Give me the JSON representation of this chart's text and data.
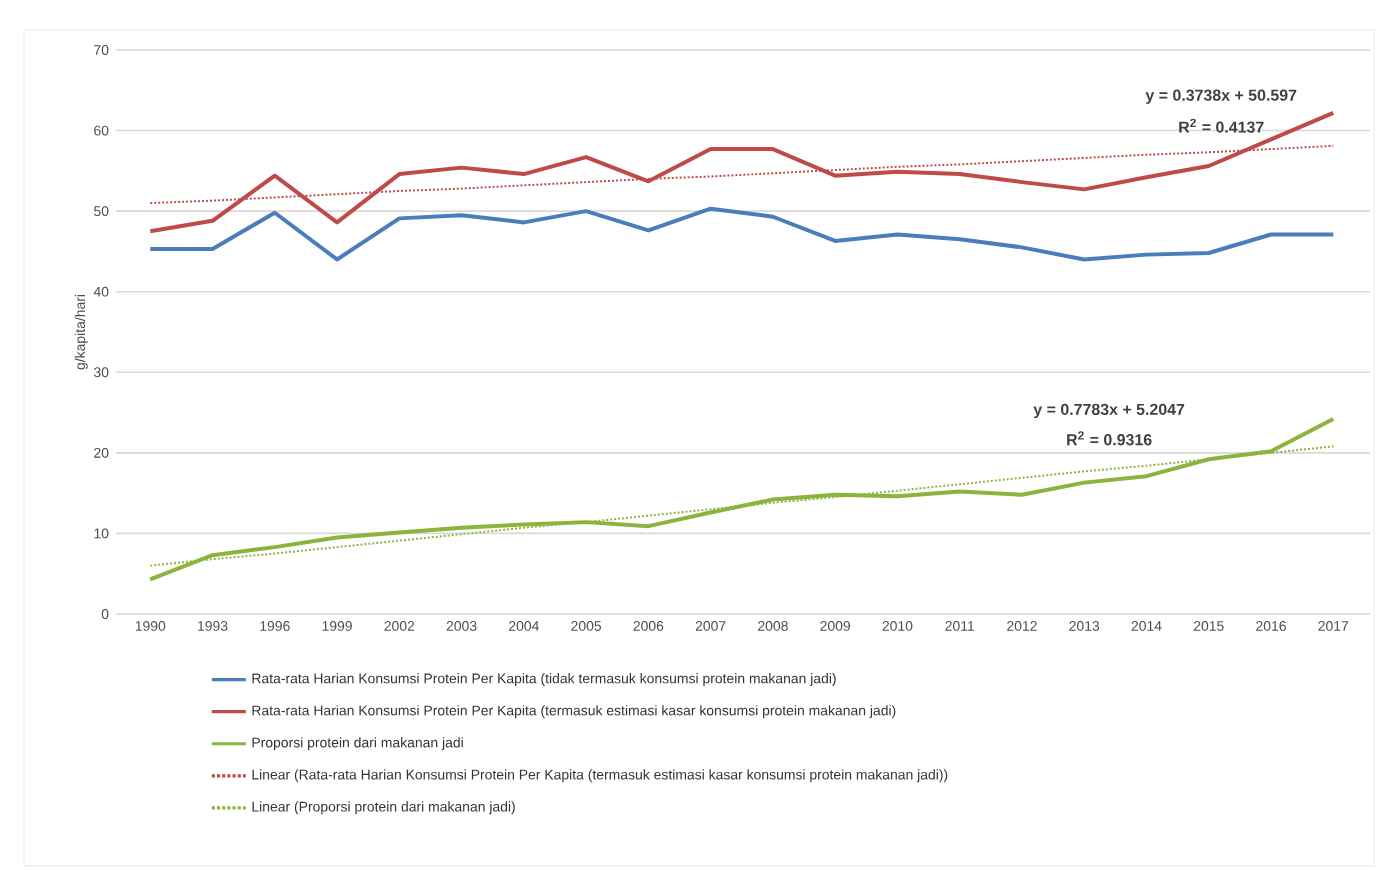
{
  "chart_data": {
    "type": "line",
    "ylabel": "g/kapita/hari",
    "categories": [
      "1990",
      "1993",
      "1996",
      "1999",
      "2002",
      "2003",
      "2004",
      "2005",
      "2006",
      "2007",
      "2008",
      "2009",
      "2010",
      "2011",
      "2012",
      "2013",
      "2014",
      "2015",
      "2016",
      "2017"
    ],
    "series": [
      {
        "name": "Rata-rata Harian Konsumsi Protein Per Kapita (tidak termasuk konsumsi protein makanan jadi)",
        "color": "#4a7ebb",
        "values": [
          45.3,
          45.3,
          49.8,
          44.0,
          49.1,
          49.5,
          48.6,
          50.0,
          47.6,
          50.3,
          49.3,
          46.3,
          47.1,
          46.5,
          45.5,
          44.0,
          44.6,
          44.8,
          47.1,
          47.1
        ]
      },
      {
        "name": "Rata-rata Harian Konsumsi Protein Per Kapita (termasuk estimasi kasar konsumsi protein makanan jadi)",
        "color": "#be4b48",
        "values": [
          47.5,
          48.8,
          54.4,
          48.6,
          54.6,
          55.4,
          54.6,
          56.7,
          53.7,
          57.7,
          57.7,
          54.4,
          54.9,
          54.6,
          53.6,
          52.7,
          54.2,
          55.6,
          58.9,
          62.2
        ]
      },
      {
        "name": "Proporsi protein dari makanan jadi",
        "color": "#8cb43d",
        "values": [
          4.3,
          7.3,
          8.3,
          9.5,
          10.1,
          10.7,
          11.1,
          11.4,
          10.9,
          12.6,
          14.2,
          14.8,
          14.6,
          15.2,
          14.8,
          16.3,
          17.1,
          19.2,
          20.2,
          24.2
        ]
      },
      {
        "name": "Linear (Rata-rata Harian Konsumsi Protein Per Kapita (termasuk estimasi kasar konsumsi protein makanan jadi))",
        "color": "#be4b48",
        "line_style": "dotted",
        "values": [
          51.0,
          51.3,
          51.7,
          52.1,
          52.5,
          52.8,
          53.2,
          53.6,
          54.0,
          54.3,
          54.7,
          55.1,
          55.5,
          55.8,
          56.2,
          56.6,
          57.0,
          57.3,
          57.7,
          58.1
        ]
      },
      {
        "name": "Linear (Proporsi protein dari makanan jadi)",
        "color": "#8cb43d",
        "line_style": "dotted",
        "values": [
          6.0,
          6.8,
          7.5,
          8.3,
          9.1,
          9.9,
          10.7,
          11.4,
          12.2,
          13.0,
          13.8,
          14.5,
          15.3,
          16.1,
          16.9,
          17.7,
          18.4,
          19.2,
          20.0,
          20.8
        ]
      }
    ],
    "annotations": [
      "y = 0.3738x + 50.597",
      "R$^{2}$ = 0.4137",
      "y = 0.7783x + 5.2047",
      "R$^{2}$ = 0.9316"
    ],
    "ylim": [
      0,
      70
    ],
    "yticks": [
      0,
      10,
      20,
      30,
      40,
      50,
      60,
      70
    ],
    "grid": "y",
    "legend": "bottom",
    "marker": "none",
    "line_style": "solid"
  }
}
